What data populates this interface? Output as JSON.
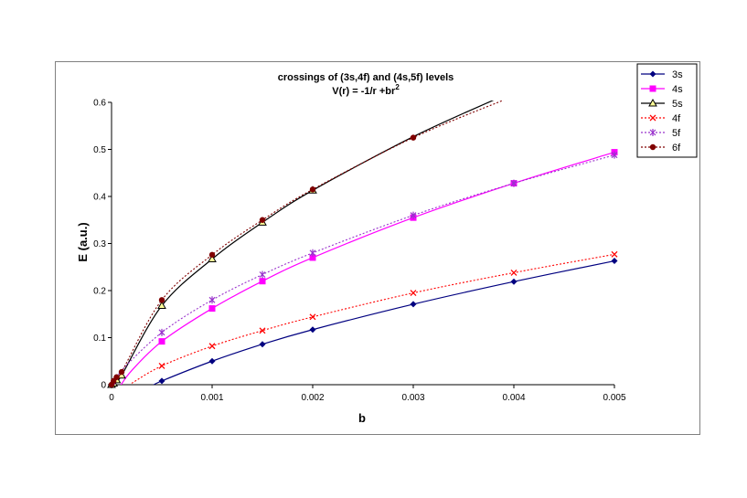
{
  "chart_data": {
    "type": "line",
    "title": "crossings of (3s,4f) and (4s,5f) levels",
    "subtitle_main": "V(r) = -1/r +br",
    "subtitle_sup": "2",
    "xlabel": "b",
    "ylabel": "E (a.u.)",
    "xlim": [
      0,
      0.005
    ],
    "ylim": [
      0,
      0.6
    ],
    "x_ticks": [
      0,
      0.001,
      0.002,
      0.003,
      0.004,
      0.005
    ],
    "x_tick_labels": [
      "0",
      "0.001",
      "0.002",
      "0.003",
      "0.004",
      "0.005"
    ],
    "y_ticks": [
      0,
      0.1,
      0.2,
      0.3,
      0.4,
      0.5,
      0.6
    ],
    "y_tick_labels": [
      "0",
      "0.1",
      "0.2",
      "0.3",
      "0.4",
      "0.5",
      "0.6"
    ],
    "legend_position": "top-right",
    "series": [
      {
        "name": "3s",
        "color": "#000080",
        "dash": "solid",
        "marker": "diamond",
        "line_x": [
          0.0004,
          0.0005,
          0.001,
          0.0015,
          0.002,
          0.003,
          0.004,
          0.005
        ],
        "line_y": [
          -0.003,
          0.008,
          0.05,
          0.086,
          0.117,
          0.171,
          0.219,
          0.263
        ],
        "marker_x": [
          0.0005,
          0.001,
          0.0015,
          0.002,
          0.003,
          0.004,
          0.005
        ],
        "marker_y": [
          0.008,
          0.05,
          0.086,
          0.117,
          0.171,
          0.219,
          0.263
        ]
      },
      {
        "name": "4s",
        "color": "#ff00ff",
        "dash": "solid",
        "marker": "square",
        "line_x": [
          8e-05,
          0.0002,
          0.0005,
          0.001,
          0.0015,
          0.002,
          0.003,
          0.004,
          0.005
        ],
        "line_y": [
          -0.005,
          0.03,
          0.092,
          0.162,
          0.22,
          0.27,
          0.355,
          0.428,
          0.494
        ],
        "marker_x": [
          0.0005,
          0.001,
          0.0015,
          0.002,
          0.003,
          0.004,
          0.005
        ],
        "marker_y": [
          0.092,
          0.162,
          0.22,
          0.27,
          0.355,
          0.428,
          0.494
        ]
      },
      {
        "name": "5s",
        "color": "#000000",
        "dash": "solid",
        "marker": "triangle",
        "line_x": [
          0,
          2e-05,
          5e-05,
          0.0001,
          0.0005,
          0.001,
          0.0015,
          0.002,
          0.003,
          0.0038
        ],
        "line_y": [
          0,
          0.003,
          0.01,
          0.02,
          0.168,
          0.267,
          0.345,
          0.413,
          0.527,
          0.605
        ],
        "marker_x": [
          0,
          2e-05,
          5e-05,
          0.0001,
          0.0005,
          0.001,
          0.0015,
          0.002
        ],
        "marker_y": [
          0,
          0.003,
          0.01,
          0.02,
          0.168,
          0.267,
          0.345,
          0.413
        ]
      },
      {
        "name": "4f",
        "color": "#ff0000",
        "dash": "dot",
        "marker": "x",
        "line_x": [
          0.0002,
          0.0005,
          0.001,
          0.0015,
          0.002,
          0.003,
          0.004,
          0.005
        ],
        "line_y": [
          0.003,
          0.04,
          0.082,
          0.115,
          0.144,
          0.195,
          0.238,
          0.277
        ],
        "marker_x": [
          0.0005,
          0.001,
          0.0015,
          0.002,
          0.003,
          0.004,
          0.005
        ],
        "marker_y": [
          0.04,
          0.082,
          0.115,
          0.144,
          0.195,
          0.238,
          0.277
        ]
      },
      {
        "name": "5f",
        "color": "#9933cc",
        "dash": "dot",
        "marker": "star",
        "line_x": [
          3e-05,
          0.0001,
          0.0005,
          0.001,
          0.0015,
          0.002,
          0.003,
          0.004,
          0.005
        ],
        "line_y": [
          0.0,
          0.03,
          0.111,
          0.18,
          0.234,
          0.28,
          0.36,
          0.428,
          0.488
        ],
        "marker_x": [
          0.0005,
          0.001,
          0.0015,
          0.002,
          0.003,
          0.004,
          0.005
        ],
        "marker_y": [
          0.111,
          0.18,
          0.234,
          0.28,
          0.36,
          0.428,
          0.488
        ]
      },
      {
        "name": "6f",
        "color": "#800000",
        "dash": "dot",
        "marker": "circle",
        "line_x": [
          0,
          2e-05,
          5e-05,
          0.0001,
          0.0005,
          0.001,
          0.0015,
          0.002,
          0.003,
          0.0039
        ],
        "line_y": [
          0.0,
          0.008,
          0.016,
          0.027,
          0.18,
          0.276,
          0.35,
          0.415,
          0.525,
          0.605
        ],
        "marker_x": [
          0,
          2e-05,
          5e-05,
          0.0001,
          0.0005,
          0.001,
          0.0015,
          0.002,
          0.003
        ],
        "marker_y": [
          0.0,
          0.008,
          0.016,
          0.027,
          0.18,
          0.276,
          0.35,
          0.415,
          0.525
        ]
      }
    ]
  }
}
